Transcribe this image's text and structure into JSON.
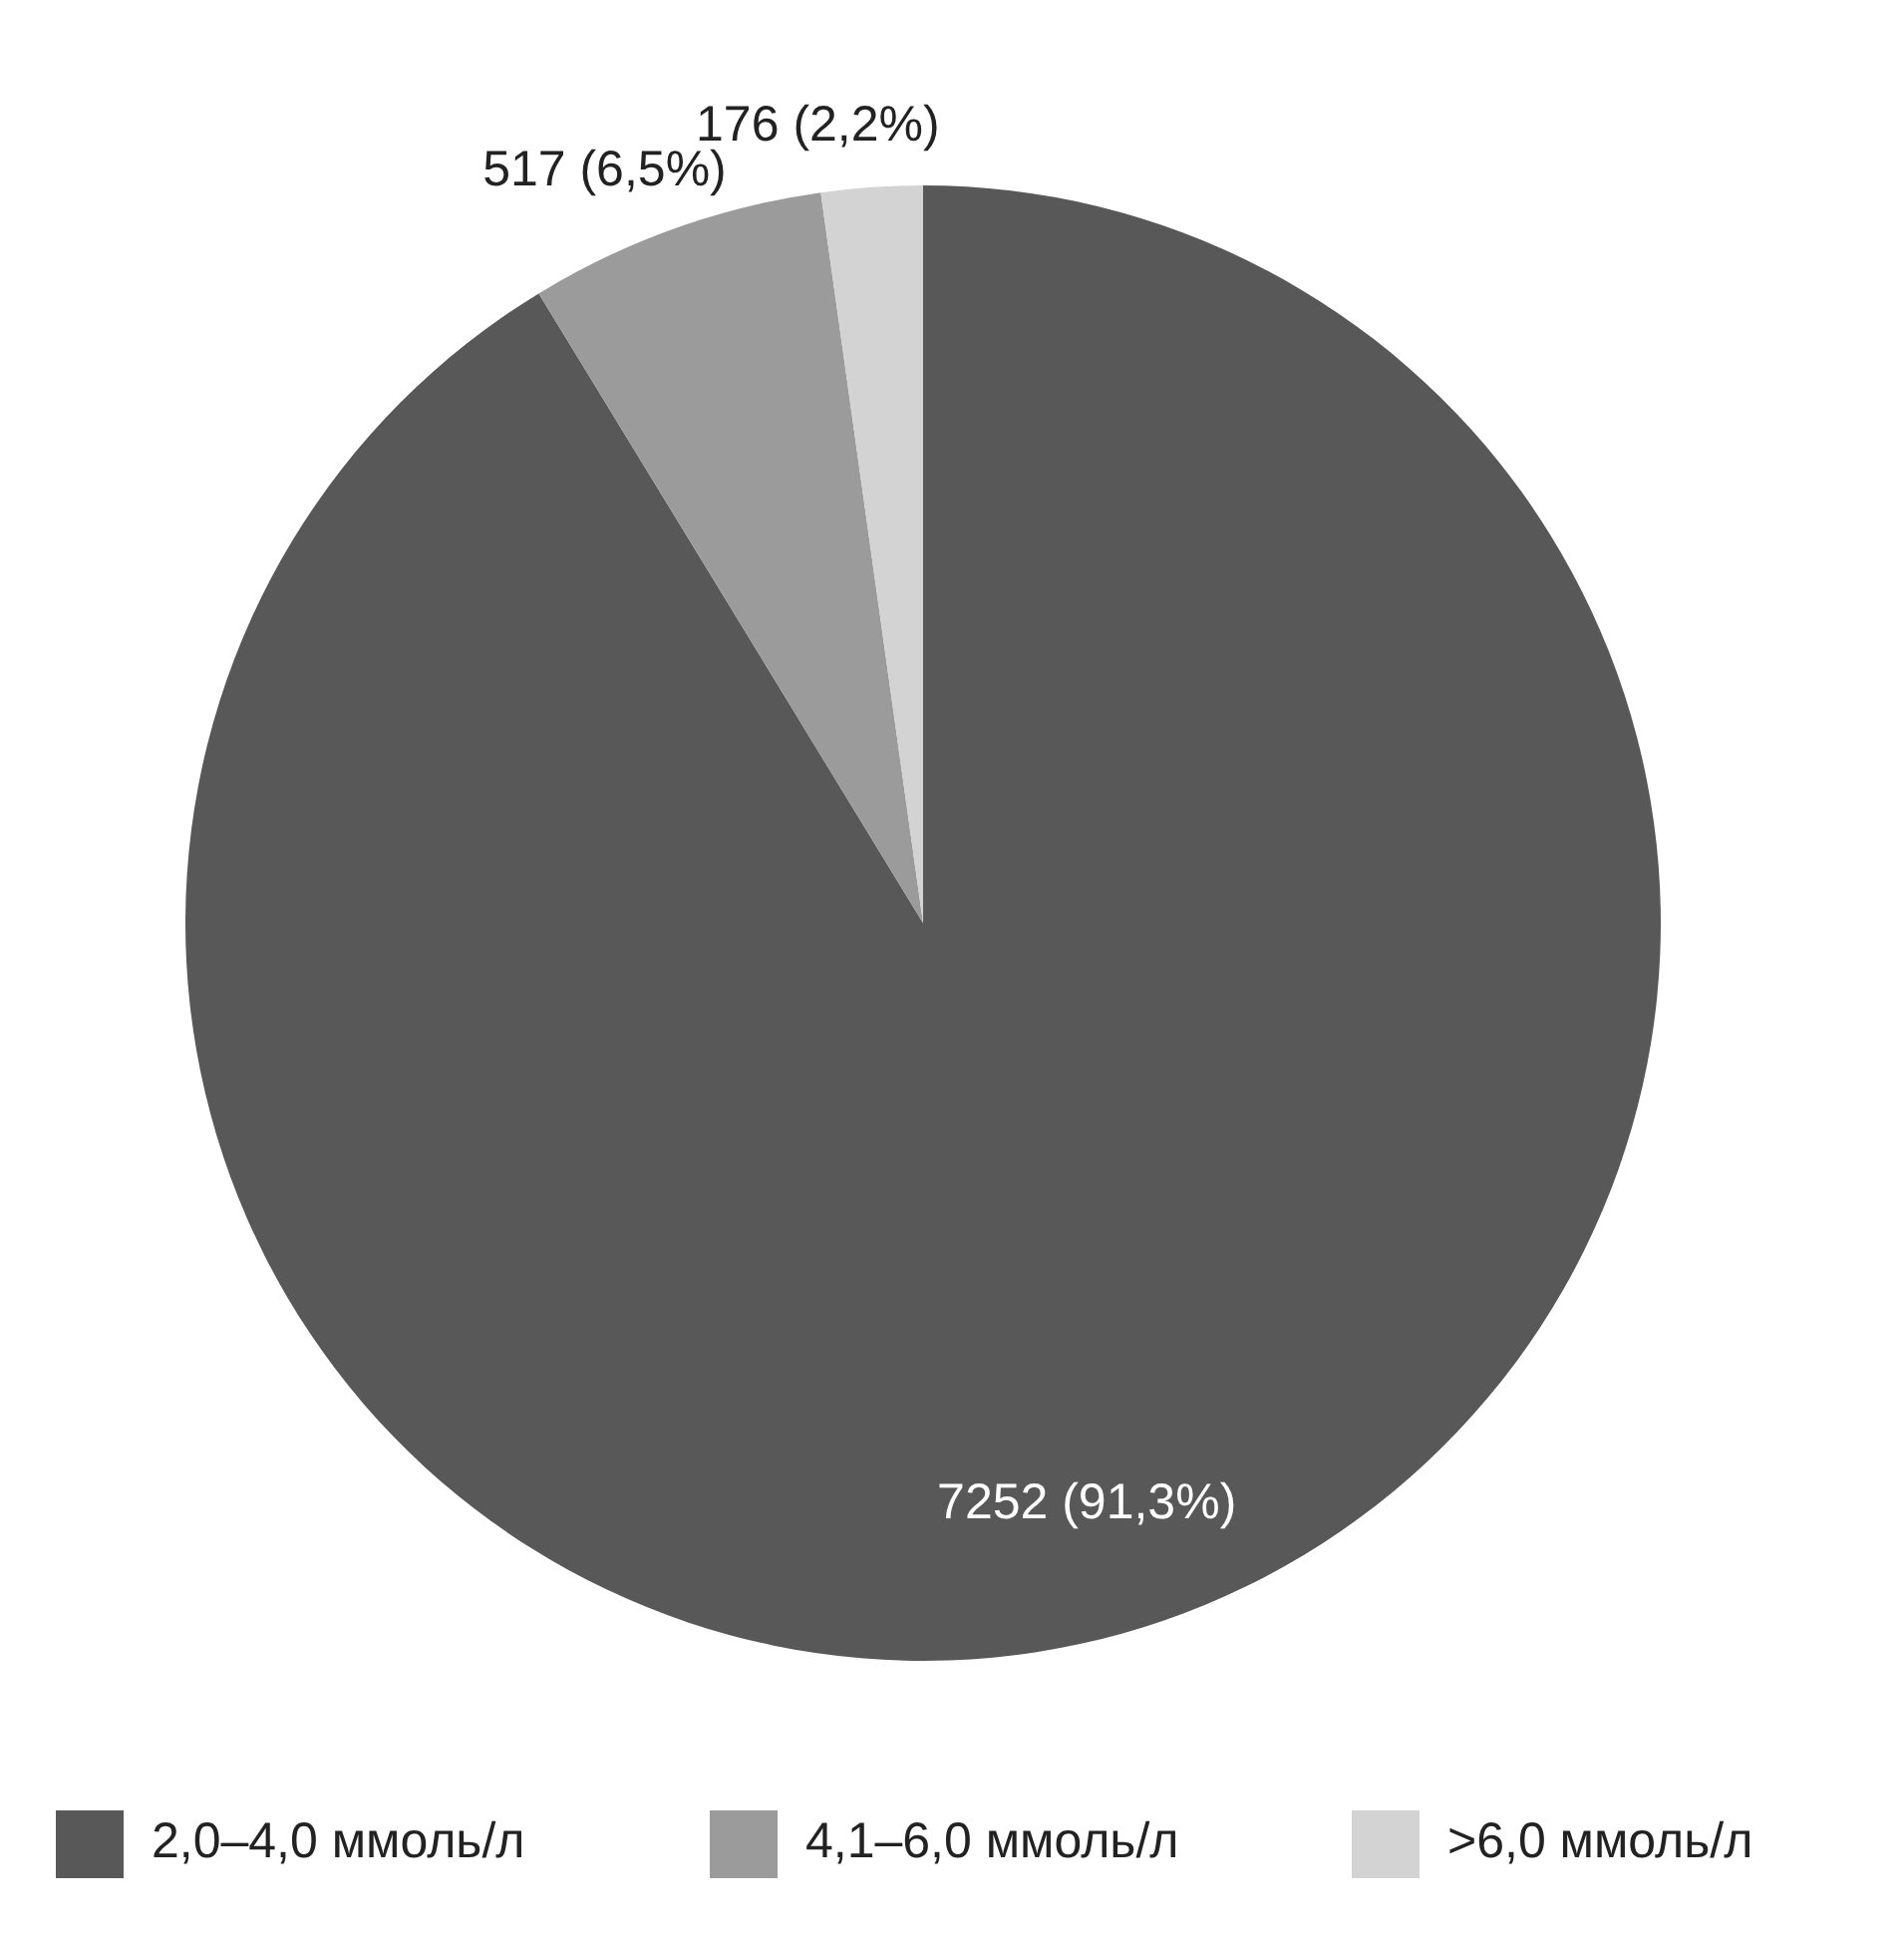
{
  "chart_data": {
    "type": "pie",
    "categories": [
      "2,0–4,0 ммоль/л",
      "4,1–6,0 ммоль/л",
      ">6,0 ммоль/л"
    ],
    "values": [
      7252,
      517,
      176
    ],
    "colors": [
      "#585858",
      "#9b9b9b",
      "#d3d3d3"
    ],
    "value_labels": [
      "7252 (91,3%)",
      "517 (6,5%)",
      "176 (2,2%)"
    ],
    "legend": "bottom"
  }
}
